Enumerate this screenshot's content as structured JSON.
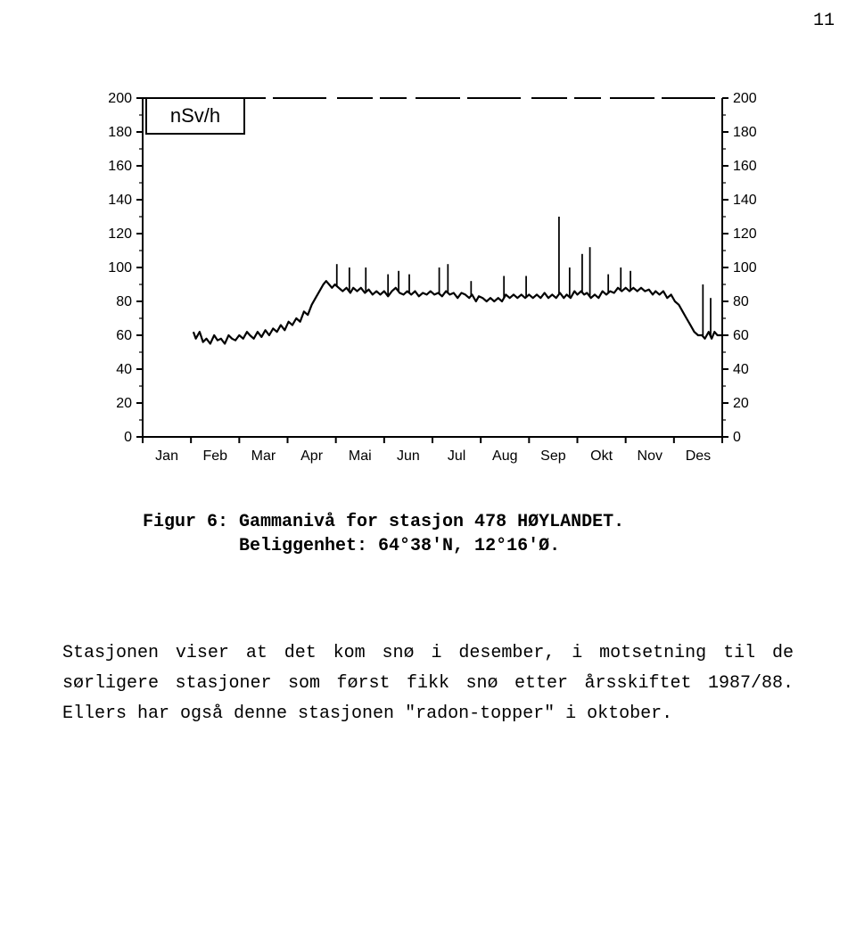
{
  "page_number": "11",
  "chart": {
    "type": "line",
    "unit_label": "nSv/h",
    "x_categories": [
      "Jan",
      "Feb",
      "Mar",
      "Apr",
      "Mai",
      "Jun",
      "Jul",
      "Aug",
      "Sep",
      "Okt",
      "Nov",
      "Des"
    ],
    "y_ticks_left": [
      200,
      180,
      160,
      140,
      120,
      100,
      80,
      60,
      40,
      20,
      0
    ],
    "y_ticks_right": [
      200,
      180,
      160,
      140,
      120,
      100,
      80,
      60,
      40,
      20,
      0
    ],
    "ylim": [
      0,
      200
    ],
    "xlim": [
      0,
      12
    ],
    "line_color": "#000000",
    "line_width": 2.2,
    "axis_color": "#000000",
    "axis_width": 2,
    "tick_fontsize": 16,
    "label_fontsize": 18,
    "unit_box_color": "#000000",
    "unit_box_width": 2,
    "background_color": "#ffffff",
    "baseline": [
      [
        1.05,
        62
      ],
      [
        1.1,
        58
      ],
      [
        1.18,
        62
      ],
      [
        1.25,
        56
      ],
      [
        1.32,
        58
      ],
      [
        1.4,
        55
      ],
      [
        1.48,
        60
      ],
      [
        1.55,
        57
      ],
      [
        1.62,
        58
      ],
      [
        1.7,
        55
      ],
      [
        1.78,
        60
      ],
      [
        1.85,
        58
      ],
      [
        1.92,
        57
      ],
      [
        2.0,
        60
      ],
      [
        2.08,
        58
      ],
      [
        2.16,
        62
      ],
      [
        2.22,
        60
      ],
      [
        2.3,
        58
      ],
      [
        2.38,
        62
      ],
      [
        2.46,
        59
      ],
      [
        2.54,
        63
      ],
      [
        2.62,
        60
      ],
      [
        2.7,
        64
      ],
      [
        2.78,
        62
      ],
      [
        2.86,
        66
      ],
      [
        2.94,
        63
      ],
      [
        3.02,
        68
      ],
      [
        3.1,
        66
      ],
      [
        3.18,
        70
      ],
      [
        3.26,
        68
      ],
      [
        3.34,
        74
      ],
      [
        3.42,
        72
      ],
      [
        3.5,
        78
      ],
      [
        3.58,
        82
      ],
      [
        3.66,
        86
      ],
      [
        3.74,
        90
      ],
      [
        3.8,
        92
      ],
      [
        3.86,
        90
      ],
      [
        3.92,
        88
      ],
      [
        3.98,
        90
      ],
      [
        4.06,
        88
      ],
      [
        4.14,
        86
      ],
      [
        4.22,
        88
      ],
      [
        4.3,
        85
      ],
      [
        4.36,
        88
      ],
      [
        4.44,
        86
      ],
      [
        4.52,
        88
      ],
      [
        4.6,
        85
      ],
      [
        4.68,
        87
      ],
      [
        4.76,
        84
      ],
      [
        4.84,
        86
      ],
      [
        4.92,
        84
      ],
      [
        5.0,
        86
      ],
      [
        5.08,
        83
      ],
      [
        5.16,
        86
      ],
      [
        5.24,
        88
      ],
      [
        5.32,
        85
      ],
      [
        5.4,
        84
      ],
      [
        5.48,
        86
      ],
      [
        5.56,
        84
      ],
      [
        5.64,
        86
      ],
      [
        5.72,
        83
      ],
      [
        5.8,
        85
      ],
      [
        5.88,
        84
      ],
      [
        5.96,
        86
      ],
      [
        6.04,
        84
      ],
      [
        6.12,
        85
      ],
      [
        6.2,
        83
      ],
      [
        6.28,
        86
      ],
      [
        6.36,
        84
      ],
      [
        6.44,
        85
      ],
      [
        6.52,
        82
      ],
      [
        6.6,
        85
      ],
      [
        6.68,
        84
      ],
      [
        6.76,
        82
      ],
      [
        6.82,
        84
      ],
      [
        6.9,
        80
      ],
      [
        6.96,
        83
      ],
      [
        7.04,
        82
      ],
      [
        7.12,
        80
      ],
      [
        7.2,
        82
      ],
      [
        7.28,
        80
      ],
      [
        7.36,
        82
      ],
      [
        7.44,
        80
      ],
      [
        7.52,
        84
      ],
      [
        7.6,
        82
      ],
      [
        7.68,
        84
      ],
      [
        7.76,
        82
      ],
      [
        7.84,
        84
      ],
      [
        7.92,
        82
      ],
      [
        8.0,
        84
      ],
      [
        8.08,
        82
      ],
      [
        8.16,
        84
      ],
      [
        8.24,
        82
      ],
      [
        8.32,
        85
      ],
      [
        8.4,
        82
      ],
      [
        8.48,
        84
      ],
      [
        8.56,
        82
      ],
      [
        8.64,
        85
      ],
      [
        8.72,
        82
      ],
      [
        8.78,
        84
      ],
      [
        8.86,
        82
      ],
      [
        8.94,
        86
      ],
      [
        9.0,
        84
      ],
      [
        9.08,
        86
      ],
      [
        9.14,
        84
      ],
      [
        9.2,
        85
      ],
      [
        9.28,
        82
      ],
      [
        9.36,
        84
      ],
      [
        9.44,
        82
      ],
      [
        9.52,
        86
      ],
      [
        9.6,
        84
      ],
      [
        9.68,
        86
      ],
      [
        9.76,
        85
      ],
      [
        9.84,
        88
      ],
      [
        9.92,
        86
      ],
      [
        10.0,
        88
      ],
      [
        10.08,
        86
      ],
      [
        10.16,
        88
      ],
      [
        10.24,
        86
      ],
      [
        10.32,
        88
      ],
      [
        10.4,
        86
      ],
      [
        10.48,
        87
      ],
      [
        10.56,
        84
      ],
      [
        10.62,
        86
      ],
      [
        10.7,
        84
      ],
      [
        10.78,
        86
      ],
      [
        10.86,
        82
      ],
      [
        10.94,
        84
      ],
      [
        11.02,
        80
      ],
      [
        11.1,
        78
      ],
      [
        11.18,
        74
      ],
      [
        11.26,
        70
      ],
      [
        11.34,
        66
      ],
      [
        11.42,
        62
      ],
      [
        11.5,
        60
      ],
      [
        11.58,
        60
      ],
      [
        11.64,
        58
      ],
      [
        11.72,
        62
      ],
      [
        11.78,
        58
      ],
      [
        11.84,
        62
      ],
      [
        11.9,
        60
      ],
      [
        11.95,
        60
      ],
      [
        12.0,
        60
      ]
    ],
    "spikes": [
      [
        4.02,
        102
      ],
      [
        4.28,
        100
      ],
      [
        4.62,
        100
      ],
      [
        5.08,
        96
      ],
      [
        5.3,
        98
      ],
      [
        5.52,
        96
      ],
      [
        6.14,
        100
      ],
      [
        6.32,
        102
      ],
      [
        6.8,
        92
      ],
      [
        7.48,
        95
      ],
      [
        7.94,
        95
      ],
      [
        8.62,
        130
      ],
      [
        8.84,
        100
      ],
      [
        9.1,
        108
      ],
      [
        9.26,
        112
      ],
      [
        9.64,
        96
      ],
      [
        9.9,
        100
      ],
      [
        10.1,
        98
      ],
      [
        11.6,
        90
      ],
      [
        11.76,
        82
      ]
    ]
  },
  "caption": {
    "line1": "Figur 6: Gammanivå for stasjon 478 HØYLANDET.",
    "line2": "         Beliggenhet: 64°38'N, 12°16'Ø."
  },
  "body": "Stasjonen viser at det kom snø i desember, i motsetning til de sørligere stasjoner som først fikk snø etter årsskiftet 1987/88.  Ellers har også denne stasjonen \"radon-topper\" i oktober."
}
